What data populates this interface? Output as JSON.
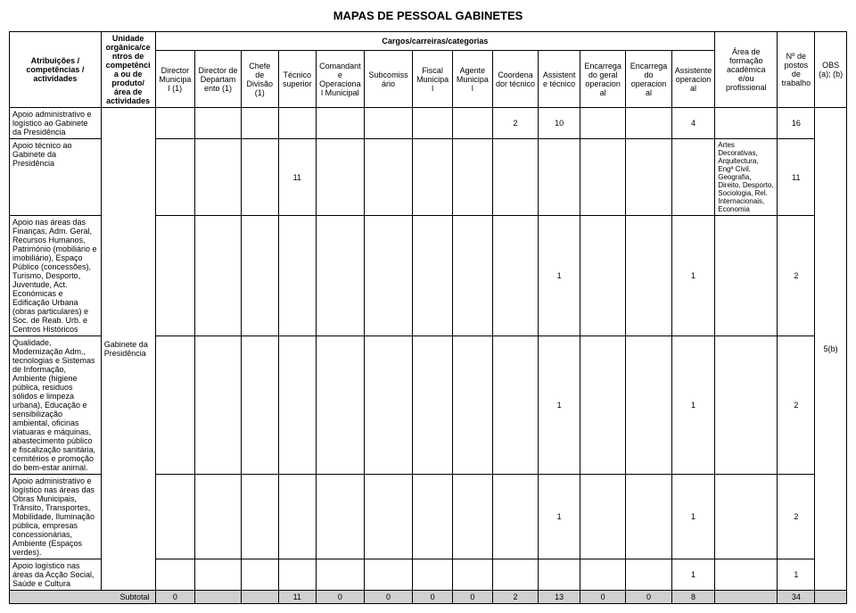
{
  "title": "MAPAS DE PESSOAL GABINETES",
  "headers": {
    "atribuicoes": "Atribuições / competências / actividades",
    "unidade": "Unidade orgânica/centros de competência ou de produto/área de actividades",
    "cargos": "Cargos/carreiras/categorias",
    "cols": {
      "director_municipal": "Director Municipal (1)",
      "director_departamento": "Director de Departamento (1)",
      "chefe_divisao": "Chefe de Divisão (1)",
      "tecnico_superior": "Técnico superior",
      "comandante": "Comandante Operacional Municipal",
      "subcomissario": "Subcomissário",
      "fiscal": "Fiscal Municipal",
      "agente": "Agente Municipal",
      "coordenador": "Coordenador técnico",
      "assistente_tecnico": "Assistente técnico",
      "encarregado_geral": "Encarregado geral operacional",
      "encarregado": "Encarregado operacional",
      "assistente_operacional": "Assistente operacional"
    },
    "area_formacao": "Área de formação académica e/ou profissional",
    "n_postos": "Nº de postos de trabalho",
    "obs": "OBS (a); (b)"
  },
  "unidade_value": "Gabinete da Presidência",
  "rows": [
    {
      "attr": "Apoio administrativo e logístico ao Gabinete da Presidência",
      "vals": [
        "",
        "",
        "",
        "",
        "",
        "",
        "",
        "",
        "2",
        "10",
        "",
        "",
        "4"
      ],
      "area": "",
      "postos": "16"
    },
    {
      "attr": "Apoio técnico ao Gabinete da Presidência",
      "vals": [
        "",
        "",
        "",
        "11",
        "",
        "",
        "",
        "",
        "",
        "",
        "",
        "",
        ""
      ],
      "area": "Artes Decorativas, Arquitectura, Engª Civil, Geografia, Direito, Desporto, Sociologia, Rel. Internacionais, Economia",
      "postos": "11"
    },
    {
      "attr": "Apoio nas áreas das Finanças, Adm. Geral, Recursos Humanos, Património (mobiliário e imobiliário), Espaço Público (concessões), Turismo, Desporto, Juventude, Act. Económicas e Edificação Urbana (obras particulares) e Soc. de Reab. Urb. e Centros Históricos",
      "vals": [
        "",
        "",
        "",
        "",
        "",
        "",
        "",
        "",
        "",
        "1",
        "",
        "",
        "1"
      ],
      "area": "",
      "postos": "2"
    },
    {
      "attr": "Qualidade, Modernização Adm., tecnologias e Sistemas de Informação, Ambiente (higiene pública, residuos sólidos e limpeza urbana), Educação e sensibilização ambiental, oficinas viatuaras e máquinas, abastecimento público e fiscalização sanitária, cemitérios e promoção do bem-estar animal.",
      "vals": [
        "",
        "",
        "",
        "",
        "",
        "",
        "",
        "",
        "",
        "1",
        "",
        "",
        "1"
      ],
      "area": "",
      "postos": "2"
    },
    {
      "attr": "Apoio administrativo e logístico nas áreas das Obras Municipais, Trânsito, Transportes, Mobilidade, Iluminação pública, empresas concessionárias, Ambiente (Espaços verdes).",
      "vals": [
        "",
        "",
        "",
        "",
        "",
        "",
        "",
        "",
        "",
        "1",
        "",
        "",
        "1"
      ],
      "area": "",
      "postos": "2"
    },
    {
      "attr": "Apoio logístico nas áreas da Acção Social, Saúde e Cultura",
      "vals": [
        "",
        "",
        "",
        "",
        "",
        "",
        "",
        "",
        "",
        "",
        "",
        "",
        "1"
      ],
      "area": "",
      "postos": "1"
    }
  ],
  "obs_value": "5(b)",
  "subtotal": {
    "label": "Subtotal",
    "vals": [
      "0",
      "",
      "",
      "11",
      "0",
      "0",
      "0",
      "0",
      "2",
      "13",
      "0",
      "0",
      "8"
    ],
    "area": "",
    "postos": "34"
  }
}
